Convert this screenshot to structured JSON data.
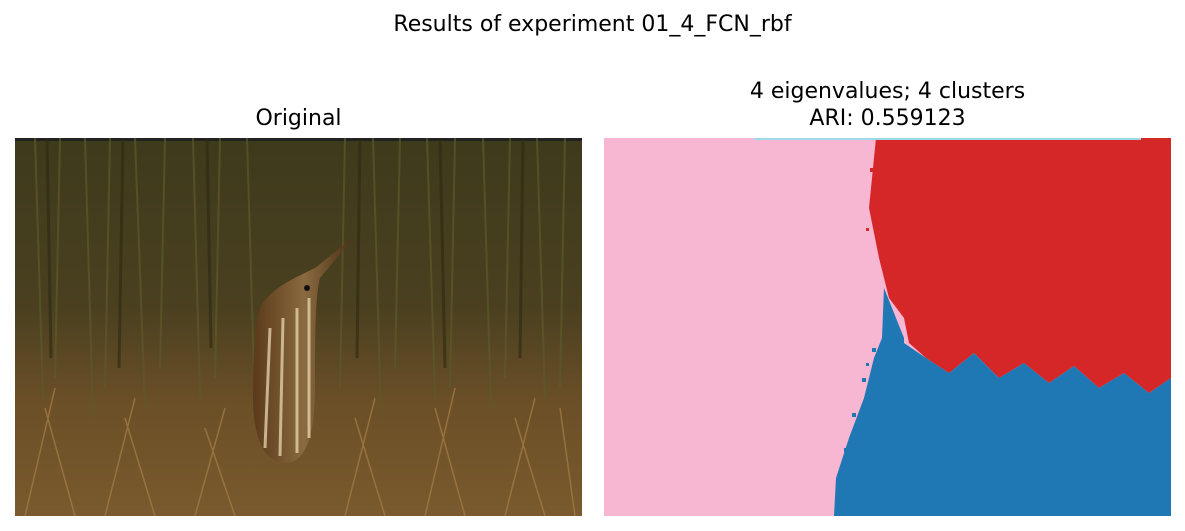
{
  "figure": {
    "suptitle": "Results of experiment 01_4_FCN_rbf"
  },
  "left_panel": {
    "title": "Original",
    "image_description_icon": "photo-bittern-in-grass"
  },
  "right_panel": {
    "title_line1": "4 eigenvalues; 4 clusters",
    "title_line2": "ARI: 0.559123",
    "clusters": [
      {
        "name": "cluster-pink",
        "color": "#f7b6d2"
      },
      {
        "name": "cluster-red",
        "color": "#d62728"
      },
      {
        "name": "cluster-blue",
        "color": "#1f77b4"
      },
      {
        "name": "cluster-cyan",
        "color": "#9edae5"
      }
    ]
  }
}
